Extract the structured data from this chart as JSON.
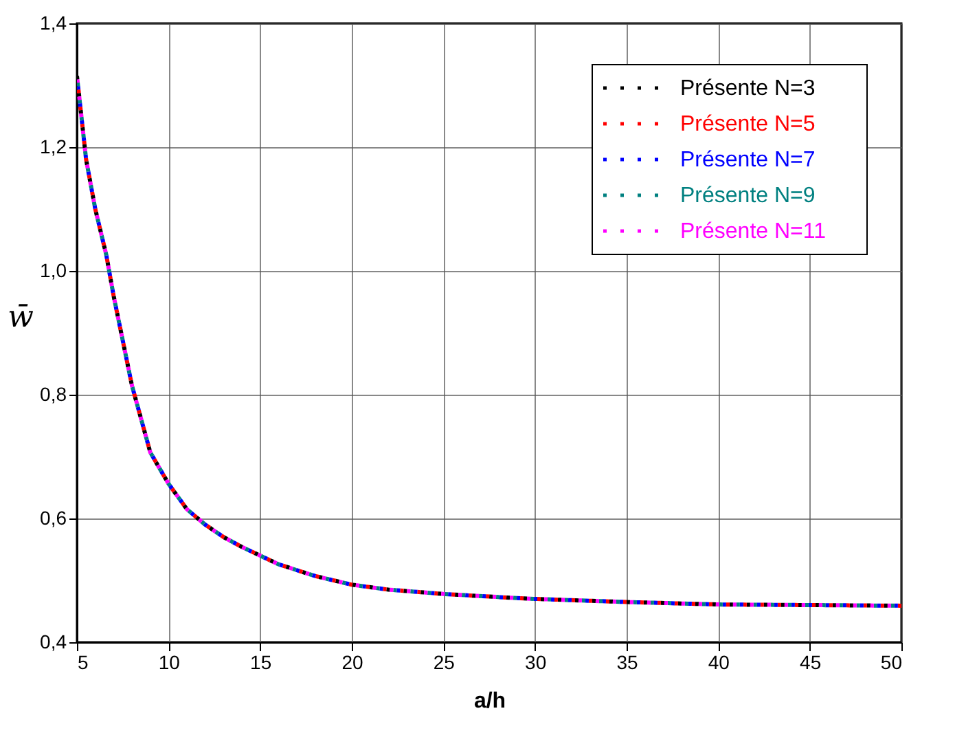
{
  "chart_data": {
    "type": "line",
    "xlabel": "a/h",
    "ylabel": "w̄",
    "x": [
      5,
      5.5,
      6,
      6.6,
      7,
      8,
      9,
      10,
      11,
      12,
      13,
      14,
      16,
      18,
      20,
      22,
      25,
      28,
      30,
      35,
      40,
      45,
      50
    ],
    "series": [
      {
        "name": "Présente N=3",
        "color": "#000000",
        "values": [
          1.315,
          1.18,
          1.1,
          1.026,
          0.96,
          0.815,
          0.707,
          0.656,
          0.615,
          0.59,
          0.57,
          0.554,
          0.526,
          0.507,
          0.493,
          0.485,
          0.478,
          0.473,
          0.47,
          0.465,
          0.461,
          0.46,
          0.459
        ]
      },
      {
        "name": "Présente N=5",
        "color": "#ff0000",
        "values": [
          1.315,
          1.18,
          1.1,
          1.026,
          0.96,
          0.815,
          0.707,
          0.656,
          0.615,
          0.59,
          0.57,
          0.554,
          0.526,
          0.507,
          0.493,
          0.485,
          0.478,
          0.473,
          0.47,
          0.465,
          0.461,
          0.46,
          0.459
        ]
      },
      {
        "name": "Présente N=7",
        "color": "#0000ff",
        "values": [
          1.315,
          1.18,
          1.1,
          1.026,
          0.96,
          0.815,
          0.707,
          0.656,
          0.615,
          0.59,
          0.57,
          0.554,
          0.526,
          0.507,
          0.493,
          0.485,
          0.478,
          0.473,
          0.47,
          0.465,
          0.461,
          0.46,
          0.459
        ]
      },
      {
        "name": "Présente N=9",
        "color": "#008080",
        "values": [
          1.315,
          1.18,
          1.1,
          1.026,
          0.96,
          0.815,
          0.707,
          0.656,
          0.615,
          0.59,
          0.57,
          0.554,
          0.526,
          0.507,
          0.493,
          0.485,
          0.478,
          0.473,
          0.47,
          0.465,
          0.461,
          0.46,
          0.459
        ]
      },
      {
        "name": "Présente N=11",
        "color": "#ff00ff",
        "values": [
          1.315,
          1.18,
          1.1,
          1.026,
          0.96,
          0.815,
          0.707,
          0.656,
          0.615,
          0.59,
          0.57,
          0.554,
          0.526,
          0.507,
          0.493,
          0.485,
          0.478,
          0.473,
          0.47,
          0.465,
          0.461,
          0.46,
          0.459
        ]
      }
    ],
    "xlim": [
      5,
      50
    ],
    "xticks": [
      5,
      10,
      15,
      20,
      25,
      30,
      35,
      40,
      45,
      50
    ],
    "ylim": [
      0.4,
      1.4
    ],
    "yticks": [
      {
        "value": 0.4,
        "label": "0,4"
      },
      {
        "value": 0.6,
        "label": "0,6"
      },
      {
        "value": 0.8,
        "label": "0,8"
      },
      {
        "value": 1.0,
        "label": "1,0"
      },
      {
        "value": 1.2,
        "label": "1,2"
      },
      {
        "value": 1.4,
        "label": "1,4"
      }
    ],
    "grid": true,
    "legend": "top right",
    "line_style": "dotted",
    "marker": "none"
  }
}
